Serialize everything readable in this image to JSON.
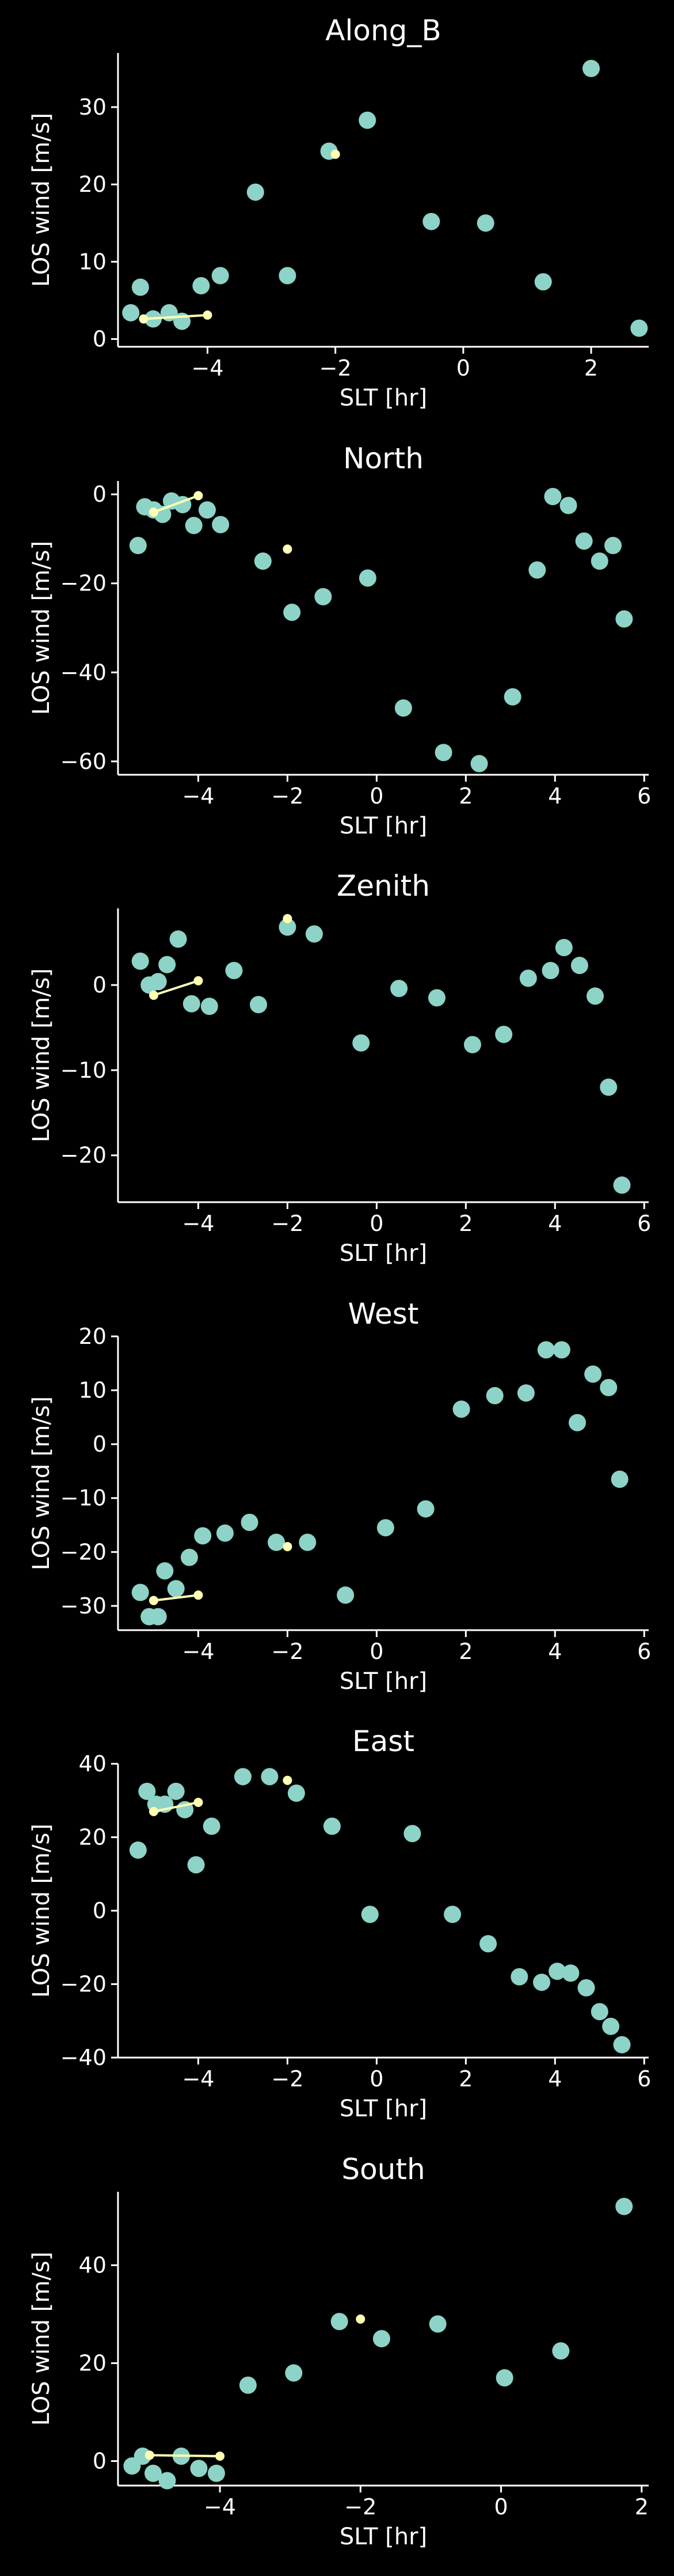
{
  "colors": {
    "background": "#000000",
    "axis": "#ffffff",
    "point": "#8dd3c7",
    "highlight": "#ffffb3"
  },
  "chart_data": [
    {
      "type": "scatter",
      "title": "Along_B",
      "xlabel": "SLT [hr]",
      "ylabel": "LOS wind [m/s]",
      "xlim": [
        -5.4,
        2.9
      ],
      "ylim": [
        -1,
        37
      ],
      "xticks": [
        -4,
        -2,
        0,
        2
      ],
      "yticks": [
        0,
        10,
        20,
        30
      ],
      "series": [
        {
          "points": [
            [
              -5.2,
              3.4
            ],
            [
              -5.05,
              6.7
            ],
            [
              -4.85,
              2.6
            ],
            [
              -4.6,
              3.4
            ],
            [
              -4.4,
              2.3
            ],
            [
              -4.1,
              6.9
            ],
            [
              -3.8,
              8.2
            ],
            [
              -3.25,
              19.0
            ],
            [
              -2.75,
              8.2
            ],
            [
              -2.1,
              24.3
            ],
            [
              -1.5,
              28.3
            ],
            [
              -0.5,
              15.2
            ],
            [
              0.35,
              15.0
            ],
            [
              1.25,
              7.4
            ],
            [
              2.0,
              35.0
            ],
            [
              2.75,
              1.4
            ]
          ]
        },
        {
          "points": [
            [
              -5.0,
              2.6
            ],
            [
              -4.0,
              3.1
            ],
            [
              -2.0,
              23.9
            ]
          ],
          "line_segment": [
            [
              -5.0,
              2.6
            ],
            [
              -4.0,
              3.1
            ]
          ]
        }
      ]
    },
    {
      "type": "scatter",
      "title": "North",
      "xlabel": "SLT [hr]",
      "ylabel": "LOS wind [m/s]",
      "xlim": [
        -5.8,
        6.1
      ],
      "ylim": [
        -63,
        3
      ],
      "xticks": [
        -4,
        -2,
        0,
        2,
        4,
        6
      ],
      "yticks": [
        0,
        -20,
        -40,
        -60
      ],
      "series": [
        {
          "points": [
            [
              -5.35,
              -11.5
            ],
            [
              -5.2,
              -2.8
            ],
            [
              -5.0,
              -3.5
            ],
            [
              -4.8,
              -4.5
            ],
            [
              -4.6,
              -1.5
            ],
            [
              -4.35,
              -2.3
            ],
            [
              -4.1,
              -7.0
            ],
            [
              -3.8,
              -3.5
            ],
            [
              -3.5,
              -6.8
            ],
            [
              -2.55,
              -15.0
            ],
            [
              -1.9,
              -26.5
            ],
            [
              -1.2,
              -23.0
            ],
            [
              -0.2,
              -18.8
            ],
            [
              0.6,
              -48.0
            ],
            [
              1.5,
              -58.0
            ],
            [
              2.3,
              -60.5
            ],
            [
              3.05,
              -45.5
            ],
            [
              3.6,
              -17.0
            ],
            [
              3.95,
              -0.5
            ],
            [
              4.3,
              -2.5
            ],
            [
              4.65,
              -10.5
            ],
            [
              5.0,
              -15.0
            ],
            [
              5.3,
              -11.5
            ],
            [
              5.55,
              -28.0
            ]
          ]
        },
        {
          "points": [
            [
              -5.0,
              -4.0
            ],
            [
              -4.0,
              -0.3
            ],
            [
              -2.0,
              -12.3
            ]
          ],
          "line_segment": [
            [
              -5.0,
              -4.0
            ],
            [
              -4.0,
              -0.3
            ]
          ]
        }
      ]
    },
    {
      "type": "scatter",
      "title": "Zenith",
      "xlabel": "SLT [hr]",
      "ylabel": "LOS wind [m/s]",
      "xlim": [
        -5.8,
        6.1
      ],
      "ylim": [
        -25.5,
        9
      ],
      "xticks": [
        -4,
        -2,
        0,
        2,
        4,
        6
      ],
      "yticks": [
        0,
        -10,
        -20
      ],
      "series": [
        {
          "points": [
            [
              -5.3,
              2.8
            ],
            [
              -5.1,
              0.0
            ],
            [
              -4.9,
              0.4
            ],
            [
              -4.7,
              2.4
            ],
            [
              -4.45,
              5.4
            ],
            [
              -4.15,
              -2.2
            ],
            [
              -3.75,
              -2.5
            ],
            [
              -3.2,
              1.7
            ],
            [
              -2.65,
              -2.3
            ],
            [
              -2.0,
              6.8
            ],
            [
              -1.4,
              6.0
            ],
            [
              -0.35,
              -6.8
            ],
            [
              0.5,
              -0.4
            ],
            [
              1.35,
              -1.5
            ],
            [
              2.15,
              -7.0
            ],
            [
              2.85,
              -5.8
            ],
            [
              3.4,
              0.8
            ],
            [
              3.9,
              1.7
            ],
            [
              4.2,
              4.4
            ],
            [
              4.55,
              2.3
            ],
            [
              4.9,
              -1.3
            ],
            [
              5.2,
              -12.0
            ],
            [
              5.5,
              -23.5
            ]
          ]
        },
        {
          "points": [
            [
              -5.0,
              -1.2
            ],
            [
              -4.0,
              0.5
            ],
            [
              -2.0,
              7.8
            ]
          ],
          "line_segment": [
            [
              -5.0,
              -1.2
            ],
            [
              -4.0,
              0.5
            ]
          ]
        }
      ]
    },
    {
      "type": "scatter",
      "title": "West",
      "xlabel": "SLT [hr]",
      "ylabel": "LOS wind [m/s]",
      "xlim": [
        -5.8,
        6.1
      ],
      "ylim": [
        -34.5,
        20
      ],
      "xticks": [
        -4,
        -2,
        0,
        2,
        4,
        6
      ],
      "yticks": [
        -30,
        -20,
        -10,
        0,
        10,
        20
      ],
      "series": [
        {
          "points": [
            [
              -5.3,
              -27.5
            ],
            [
              -5.1,
              -32.0
            ],
            [
              -4.9,
              -32.0
            ],
            [
              -4.75,
              -23.5
            ],
            [
              -4.5,
              -26.8
            ],
            [
              -4.2,
              -21.0
            ],
            [
              -3.9,
              -17.0
            ],
            [
              -3.4,
              -16.5
            ],
            [
              -2.85,
              -14.5
            ],
            [
              -2.25,
              -18.2
            ],
            [
              -1.55,
              -18.2
            ],
            [
              -0.7,
              -28.0
            ],
            [
              0.2,
              -15.5
            ],
            [
              1.1,
              -12.0
            ],
            [
              1.9,
              6.5
            ],
            [
              2.65,
              9.0
            ],
            [
              3.35,
              9.5
            ],
            [
              3.8,
              17.5
            ],
            [
              4.15,
              17.5
            ],
            [
              4.5,
              4.0
            ],
            [
              4.85,
              13.0
            ],
            [
              5.2,
              10.5
            ],
            [
              5.45,
              -6.5
            ]
          ]
        },
        {
          "points": [
            [
              -5.0,
              -29.0
            ],
            [
              -4.0,
              -28.0
            ],
            [
              -2.0,
              -19.0
            ]
          ],
          "line_segment": [
            [
              -5.0,
              -29.0
            ],
            [
              -4.0,
              -28.0
            ]
          ]
        }
      ]
    },
    {
      "type": "scatter",
      "title": "East",
      "xlabel": "SLT [hr]",
      "ylabel": "LOS wind [m/s]",
      "xlim": [
        -5.8,
        6.1
      ],
      "ylim": [
        -40,
        40
      ],
      "xticks": [
        -4,
        -2,
        0,
        2,
        4,
        6
      ],
      "yticks": [
        -40,
        -20,
        0,
        20,
        40
      ],
      "series": [
        {
          "points": [
            [
              -5.35,
              16.5
            ],
            [
              -5.15,
              32.5
            ],
            [
              -4.95,
              29.0
            ],
            [
              -4.75,
              29.0
            ],
            [
              -4.5,
              32.5
            ],
            [
              -4.3,
              27.5
            ],
            [
              -4.05,
              12.5
            ],
            [
              -3.7,
              23.0
            ],
            [
              -3.0,
              36.5
            ],
            [
              -2.4,
              36.5
            ],
            [
              -1.8,
              32.0
            ],
            [
              -1.0,
              23.0
            ],
            [
              -0.15,
              -1.0
            ],
            [
              0.8,
              21.0
            ],
            [
              1.7,
              -1.0
            ],
            [
              2.5,
              -9.0
            ],
            [
              3.2,
              -18.0
            ],
            [
              3.7,
              -19.5
            ],
            [
              4.05,
              -16.5
            ],
            [
              4.35,
              -17.0
            ],
            [
              4.7,
              -21.0
            ],
            [
              5.0,
              -27.5
            ],
            [
              5.25,
              -31.5
            ],
            [
              5.5,
              -36.5
            ]
          ]
        },
        {
          "points": [
            [
              -5.0,
              27.0
            ],
            [
              -4.0,
              29.5
            ],
            [
              -2.0,
              35.5
            ]
          ],
          "line_segment": [
            [
              -5.0,
              27.0
            ],
            [
              -4.0,
              29.5
            ]
          ]
        }
      ]
    },
    {
      "type": "scatter",
      "title": "South",
      "xlabel": "SLT [hr]",
      "ylabel": "LOS wind [m/s]",
      "xlim": [
        -5.45,
        2.1
      ],
      "ylim": [
        -5,
        55
      ],
      "xticks": [
        -4,
        -2,
        0,
        2
      ],
      "yticks": [
        0,
        20,
        40
      ],
      "series": [
        {
          "points": [
            [
              -5.25,
              -1.0
            ],
            [
              -5.1,
              1.0
            ],
            [
              -4.95,
              -2.5
            ],
            [
              -4.75,
              -4.0
            ],
            [
              -4.55,
              1.0
            ],
            [
              -4.3,
              -1.5
            ],
            [
              -4.05,
              -2.5
            ],
            [
              -3.6,
              15.5
            ],
            [
              -2.95,
              18.0
            ],
            [
              -2.3,
              28.5
            ],
            [
              -1.7,
              25.0
            ],
            [
              -0.9,
              28.0
            ],
            [
              0.05,
              17.0
            ],
            [
              0.85,
              22.5
            ],
            [
              1.75,
              52.0
            ]
          ]
        },
        {
          "points": [
            [
              -5.0,
              1.2
            ],
            [
              -4.0,
              1.0
            ],
            [
              -2.0,
              29.0
            ]
          ],
          "line_segment": [
            [
              -5.0,
              1.2
            ],
            [
              -4.0,
              1.0
            ]
          ]
        }
      ]
    }
  ]
}
